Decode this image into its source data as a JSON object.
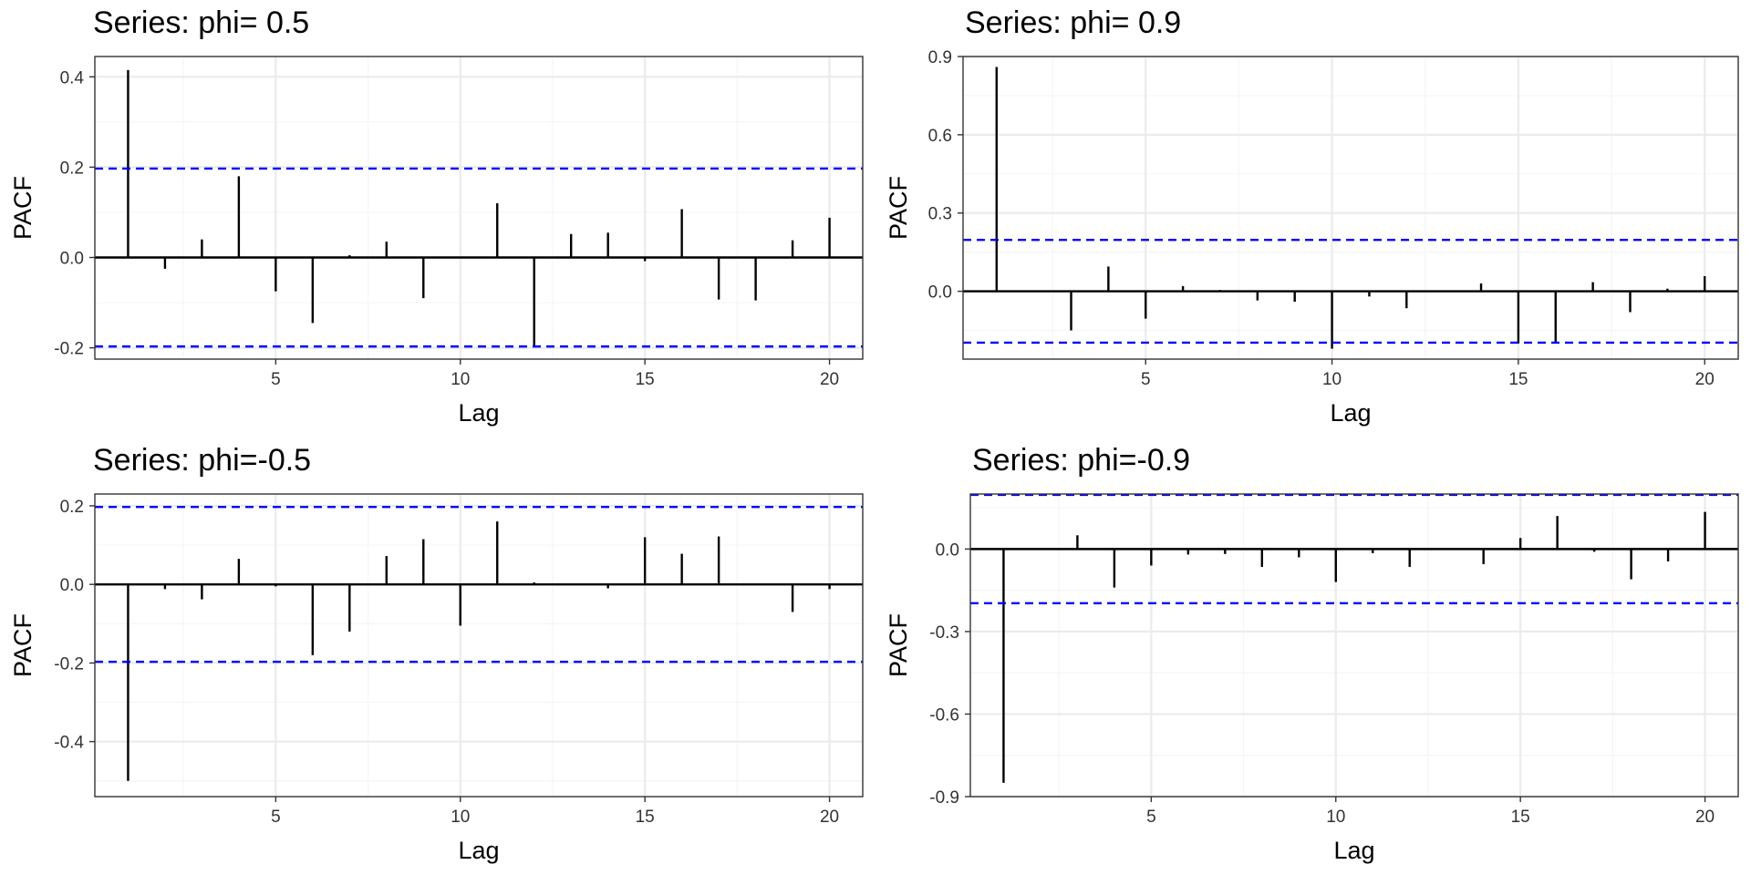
{
  "colors": {
    "bar": "#000000",
    "ci": "#0000ff",
    "grid_major": "#ebebeb",
    "grid_minor": "#f5f5f5",
    "frame": "#333333"
  },
  "chart_data": [
    {
      "type": "bar",
      "title": "Series: phi= 0.5",
      "xlabel": "Lag",
      "ylabel": "PACF",
      "x": [
        1,
        2,
        3,
        4,
        5,
        6,
        7,
        8,
        9,
        10,
        11,
        12,
        13,
        14,
        15,
        16,
        17,
        18,
        19,
        20
      ],
      "values": [
        0.415,
        -0.025,
        0.04,
        0.18,
        -0.075,
        -0.145,
        0.005,
        0.035,
        -0.09,
        0.0,
        0.12,
        -0.195,
        0.052,
        0.055,
        -0.008,
        0.107,
        -0.093,
        -0.095,
        0.038,
        0.088
      ],
      "ci": 0.197,
      "xlim": [
        0.1,
        20.9
      ],
      "ylim": [
        -0.225,
        0.445
      ],
      "xticks": [
        5,
        10,
        15,
        20
      ],
      "xtick_labels": [
        "5",
        "10",
        "15",
        "20"
      ],
      "yticks": [
        -0.2,
        0.0,
        0.2,
        0.4
      ],
      "ytick_labels": [
        "-0.2",
        "0.0",
        "0.2",
        "0.4"
      ],
      "grid": true
    },
    {
      "type": "bar",
      "title": "Series: phi= 0.9",
      "xlabel": "Lag",
      "ylabel": "PACF",
      "x": [
        1,
        2,
        3,
        4,
        5,
        6,
        7,
        8,
        9,
        10,
        11,
        12,
        13,
        14,
        15,
        16,
        17,
        18,
        19,
        20
      ],
      "values": [
        0.86,
        0.0,
        -0.15,
        0.095,
        -0.105,
        0.02,
        0.005,
        -0.035,
        -0.04,
        -0.22,
        -0.02,
        -0.065,
        0.0,
        0.03,
        -0.2,
        -0.2,
        0.035,
        -0.08,
        0.01,
        0.058
      ],
      "ci": 0.197,
      "xlim": [
        0.1,
        20.9
      ],
      "ylim": [
        -0.26,
        0.9
      ],
      "xticks": [
        5,
        10,
        15,
        20
      ],
      "xtick_labels": [
        "5",
        "10",
        "15",
        "20"
      ],
      "yticks": [
        0.0,
        0.3,
        0.6,
        0.9
      ],
      "ytick_labels": [
        "0.0",
        "0.3",
        "0.6",
        "0.9"
      ],
      "grid": true
    },
    {
      "type": "bar",
      "title": "Series: phi=-0.5",
      "xlabel": "Lag",
      "ylabel": "PACF",
      "x": [
        1,
        2,
        3,
        4,
        5,
        6,
        7,
        8,
        9,
        10,
        11,
        12,
        13,
        14,
        15,
        16,
        17,
        18,
        19,
        20
      ],
      "values": [
        -0.5,
        -0.012,
        -0.038,
        0.065,
        -0.005,
        -0.18,
        -0.12,
        0.072,
        0.115,
        -0.105,
        0.16,
        0.005,
        0.0,
        -0.01,
        0.12,
        0.078,
        0.122,
        0.0,
        -0.07,
        -0.012
      ],
      "ci": 0.197,
      "xlim": [
        0.1,
        20.9
      ],
      "ylim": [
        -0.54,
        0.23
      ],
      "xticks": [
        5,
        10,
        15,
        20
      ],
      "xtick_labels": [
        "5",
        "10",
        "15",
        "20"
      ],
      "yticks": [
        -0.4,
        -0.2,
        0.0,
        0.2
      ],
      "ytick_labels": [
        "-0.4",
        "-0.2",
        "0.0",
        "0.2"
      ],
      "grid": true
    },
    {
      "type": "bar",
      "title": "Series: phi=-0.9",
      "xlabel": "Lag",
      "ylabel": "PACF",
      "x": [
        1,
        2,
        3,
        4,
        5,
        6,
        7,
        8,
        9,
        10,
        11,
        12,
        13,
        14,
        15,
        16,
        17,
        18,
        19,
        20
      ],
      "values": [
        -0.85,
        0.0,
        0.05,
        -0.14,
        -0.06,
        -0.02,
        -0.018,
        -0.065,
        -0.03,
        -0.12,
        -0.015,
        -0.065,
        0.0,
        -0.055,
        0.04,
        0.12,
        -0.01,
        -0.11,
        -0.045,
        0.135
      ],
      "ci": 0.197,
      "xlim": [
        0.1,
        20.9
      ],
      "ylim": [
        -0.9,
        0.2
      ],
      "xticks": [
        5,
        10,
        15,
        20
      ],
      "xtick_labels": [
        "5",
        "10",
        "15",
        "20"
      ],
      "yticks": [
        -0.9,
        -0.6,
        -0.3,
        0.0
      ],
      "ytick_labels": [
        "-0.9",
        "-0.6",
        "-0.3",
        "0.0"
      ],
      "grid": true
    }
  ]
}
